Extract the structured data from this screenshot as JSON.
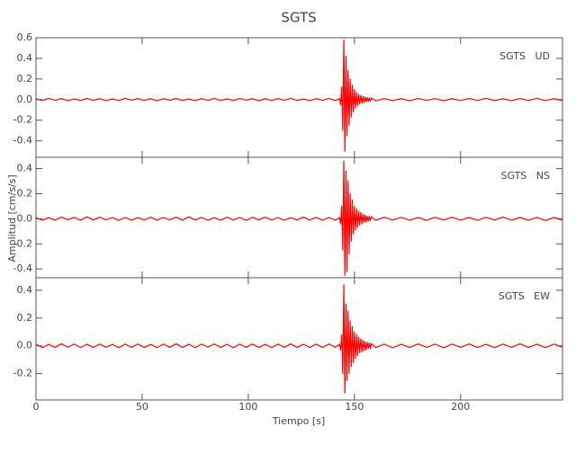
{
  "chart_data": {
    "type": "line",
    "title": "SGTS",
    "x_label": "Tiempo [s]",
    "y_label": "Amplitud [cm/s/s]",
    "xlim": [
      0,
      248
    ],
    "xticks": [
      0,
      50,
      100,
      150,
      200
    ],
    "x": [
      0,
      3,
      6,
      9,
      12,
      15,
      18,
      21,
      24,
      27,
      30,
      33,
      36,
      39,
      42,
      45,
      48,
      51,
      54,
      57,
      60,
      63,
      66,
      69,
      72,
      75,
      78,
      81,
      84,
      87,
      90,
      93,
      96,
      99,
      102,
      105,
      108,
      111,
      114,
      117,
      120,
      123,
      126,
      129,
      132,
      135,
      138,
      141,
      143,
      143.5,
      144,
      144.5,
      145,
      145.5,
      146,
      146.5,
      147,
      147.5,
      148,
      148.5,
      149,
      149.5,
      150,
      150.5,
      151,
      151.5,
      152,
      152.5,
      153,
      153.5,
      154,
      154.5,
      155,
      155.5,
      156,
      156.5,
      157,
      157.5,
      158,
      160,
      164,
      168,
      172,
      176,
      180,
      184,
      188,
      192,
      196,
      200,
      204,
      208,
      212,
      216,
      220,
      224,
      228,
      232,
      236,
      240,
      244,
      248
    ],
    "panels": [
      {
        "name": "SGTS   UD",
        "color": "#ff0000",
        "ylim": [
          -0.56,
          0.6
        ],
        "yticks": [
          -0.4,
          -0.2,
          {
            "value": 0,
            "label": "0.0"
          },
          0.2,
          0.4,
          0.6
        ],
        "values": [
          0.008,
          -0.01,
          0.012,
          -0.007,
          0.01,
          -0.012,
          0.006,
          -0.009,
          0.011,
          -0.008,
          0.009,
          -0.011,
          0.007,
          -0.01,
          0.012,
          -0.006,
          0.01,
          -0.009,
          0.008,
          -0.012,
          0.009,
          -0.007,
          0.011,
          -0.01,
          0.006,
          -0.011,
          0.01,
          -0.008,
          0.012,
          -0.009,
          0.007,
          -0.01,
          0.011,
          -0.006,
          0.009,
          -0.012,
          0.008,
          -0.01,
          0.01,
          -0.007,
          0.012,
          -0.009,
          0.006,
          -0.011,
          0.01,
          -0.008,
          0.011,
          -0.01,
          0.01,
          -0.05,
          0.12,
          -0.3,
          0.58,
          -0.5,
          0.42,
          -0.35,
          0.28,
          -0.25,
          0.2,
          -0.17,
          0.14,
          -0.12,
          0.1,
          -0.08,
          0.07,
          -0.06,
          0.05,
          -0.045,
          0.04,
          -0.035,
          0.03,
          -0.03,
          0.025,
          -0.02,
          0.02,
          -0.02,
          0.015,
          -0.015,
          0.015,
          -0.012,
          0.01,
          -0.011,
          0.009,
          -0.012,
          0.011,
          -0.008,
          0.01,
          -0.012,
          0.009,
          -0.01,
          0.011,
          -0.009,
          0.012,
          -0.01,
          0.008,
          -0.011,
          0.01,
          -0.009,
          0.012,
          -0.01,
          0.009,
          -0.011
        ]
      },
      {
        "name": "SGTS   NS",
        "color": "#ff0000",
        "ylim": [
          -0.47,
          0.49
        ],
        "yticks": [
          -0.4,
          -0.2,
          {
            "value": 0,
            "label": "0.0"
          },
          0.2,
          0.4
        ],
        "values": [
          0.01,
          -0.012,
          0.009,
          -0.011,
          0.013,
          -0.008,
          0.011,
          -0.012,
          0.015,
          -0.01,
          0.012,
          -0.009,
          0.01,
          -0.013,
          0.011,
          -0.012,
          0.009,
          -0.01,
          0.012,
          -0.011,
          0.01,
          -0.009,
          0.013,
          -0.012,
          0.016,
          -0.01,
          0.011,
          -0.012,
          0.009,
          -0.011,
          0.012,
          -0.01,
          0.01,
          -0.013,
          0.011,
          -0.009,
          0.012,
          -0.011,
          0.01,
          -0.012,
          0.009,
          -0.01,
          0.013,
          -0.011,
          0.011,
          -0.012,
          0.01,
          -0.012,
          0.01,
          -0.04,
          0.1,
          -0.25,
          0.46,
          -0.45,
          0.38,
          -0.42,
          0.3,
          -0.28,
          0.2,
          -0.18,
          0.15,
          -0.12,
          0.1,
          -0.09,
          0.08,
          -0.07,
          0.06,
          -0.05,
          0.05,
          -0.04,
          0.035,
          -0.03,
          0.03,
          -0.025,
          0.02,
          -0.02,
          0.02,
          -0.015,
          0.015,
          -0.013,
          0.012,
          -0.01,
          0.011,
          -0.012,
          0.01,
          -0.013,
          0.011,
          -0.01,
          0.012,
          -0.011,
          0.01,
          -0.012,
          0.011,
          -0.01,
          0.013,
          -0.011,
          0.01,
          -0.012,
          0.011,
          -0.015,
          0.01,
          -0.012
        ]
      },
      {
        "name": "SGTS   EW",
        "color": "#ff0000",
        "ylim": [
          -0.39,
          0.49
        ],
        "yticks": [
          -0.2,
          {
            "value": 0,
            "label": "0.0"
          },
          0.2,
          0.4
        ],
        "values": [
          0.011,
          -0.013,
          0.01,
          -0.012,
          0.014,
          -0.01,
          0.012,
          -0.013,
          0.011,
          -0.012,
          0.013,
          -0.011,
          0.01,
          -0.014,
          0.012,
          -0.011,
          0.013,
          -0.012,
          0.01,
          -0.013,
          0.012,
          -0.011,
          0.014,
          -0.012,
          0.011,
          -0.013,
          0.012,
          -0.01,
          0.013,
          -0.012,
          0.011,
          -0.014,
          0.012,
          -0.011,
          0.013,
          -0.012,
          0.01,
          -0.013,
          0.012,
          -0.011,
          0.014,
          -0.012,
          0.011,
          -0.013,
          0.012,
          -0.012,
          0.013,
          -0.011,
          0.01,
          -0.03,
          0.08,
          -0.2,
          0.44,
          -0.34,
          0.3,
          -0.25,
          0.25,
          -0.2,
          0.18,
          -0.15,
          0.14,
          -0.12,
          0.1,
          -0.09,
          0.08,
          -0.07,
          0.06,
          -0.05,
          0.05,
          -0.045,
          0.04,
          -0.035,
          0.03,
          -0.03,
          0.025,
          -0.02,
          0.02,
          -0.02,
          0.015,
          -0.013,
          0.012,
          -0.014,
          0.011,
          -0.012,
          0.013,
          -0.011,
          0.012,
          -0.014,
          0.012,
          -0.011,
          0.013,
          -0.012,
          0.011,
          -0.013,
          0.012,
          -0.011,
          0.014,
          -0.012,
          0.011,
          -0.013,
          0.012,
          -0.011
        ]
      }
    ]
  }
}
